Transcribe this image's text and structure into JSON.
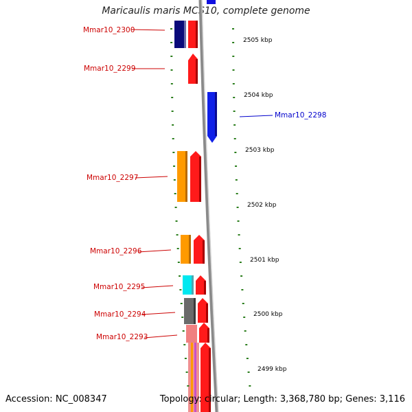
{
  "title": "Maricaulis maris MCS10, complete genome",
  "footer": {
    "accession": "Accession: NC_008347",
    "summary": "Topology: circular; Length: 3,368,780 bp; Genes: 3,116"
  },
  "colors": {
    "minus_strand_label": "#cc0000",
    "plus_strand_label": "#0000cc",
    "tick": "#2a7d1b",
    "backbone": "#8a8a8a"
  },
  "ruler": [
    {
      "label": "2505 kbp"
    },
    {
      "label": "2504 kbp"
    },
    {
      "label": "2503 kbp"
    },
    {
      "label": "2502 kbp"
    },
    {
      "label": "2501 kbp"
    },
    {
      "label": "2500 kbp"
    },
    {
      "label": "2499 kbp"
    }
  ],
  "gene_labels": [
    {
      "name": "Mmar10_2300",
      "strand": "minus"
    },
    {
      "name": "Mmar10_2299",
      "strand": "minus"
    },
    {
      "name": "Mmar10_2298",
      "strand": "plus"
    },
    {
      "name": "Mmar10_2297",
      "strand": "minus"
    },
    {
      "name": "Mmar10_2296",
      "strand": "minus"
    },
    {
      "name": "Mmar10_2295",
      "strand": "minus"
    },
    {
      "name": "Mmar10_2294",
      "strand": "minus"
    },
    {
      "name": "Mmar10_2293",
      "strand": "minus"
    }
  ]
}
